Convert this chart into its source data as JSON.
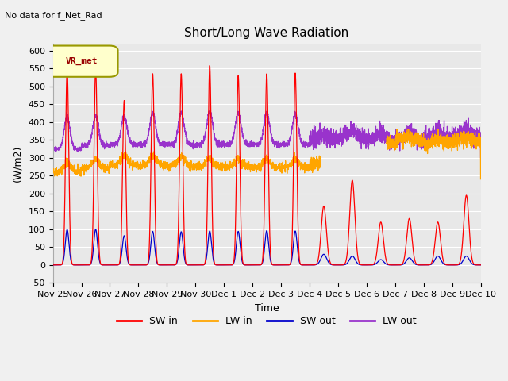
{
  "title": "Short/Long Wave Radiation",
  "xlabel": "Time",
  "ylabel": "(W/m2)",
  "ylim": [
    -50,
    620
  ],
  "annotation_text": "No data for f_Net_Rad",
  "legend_label": "VR_met",
  "fig_bg": "#f0f0f0",
  "plot_bg": "#e8e8e8",
  "grid_color": "#ffffff",
  "colors": {
    "SW_in": "#ff0000",
    "LW_in": "#ffa500",
    "SW_out": "#0000cc",
    "LW_out": "#9933cc"
  },
  "xtick_labels": [
    "Nov 25",
    "Nov 26",
    "Nov 27",
    "Nov 28",
    "Nov 29",
    "Nov 30",
    "Dec 1",
    "Dec 2",
    "Dec 3",
    "Dec 4",
    "Dec 5",
    "Dec 6",
    "Dec 7",
    "Dec 8",
    "Dec 9",
    "Dec 10"
  ],
  "n_days": 15,
  "pts_per_day": 240
}
